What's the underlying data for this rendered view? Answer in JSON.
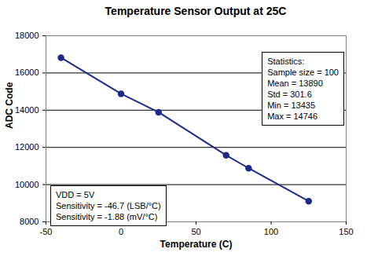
{
  "chart_data": {
    "type": "line",
    "title": "Temperature Sensor Output at 25C",
    "x_label": "Temperature (C)",
    "y_label": "ADC Code",
    "x": [
      -40,
      0,
      25,
      70,
      85,
      125
    ],
    "values": [
      16820,
      14880,
      13890,
      11580,
      10880,
      9110
    ],
    "color": "#1c2a8a",
    "marker": "circle",
    "line_style": "solid",
    "xlim": [
      -50,
      150
    ],
    "xticks": [
      -50,
      0,
      50,
      100,
      150
    ],
    "ylim": [
      8000,
      18000
    ],
    "yticks": [
      8000,
      10000,
      12000,
      14000,
      16000,
      18000
    ],
    "grid": true,
    "annotations": [
      [
        "Statistics:",
        "Sample size = 100",
        "Mean = 13890",
        "Std = 301.6",
        "Min = 13435",
        "Max = 14746"
      ],
      [
        "VDD = 5V",
        "Sensitivity = -46.7 (LSB/°C)",
        "Sensitivity = -1.88 (mV/°C)"
      ]
    ]
  }
}
